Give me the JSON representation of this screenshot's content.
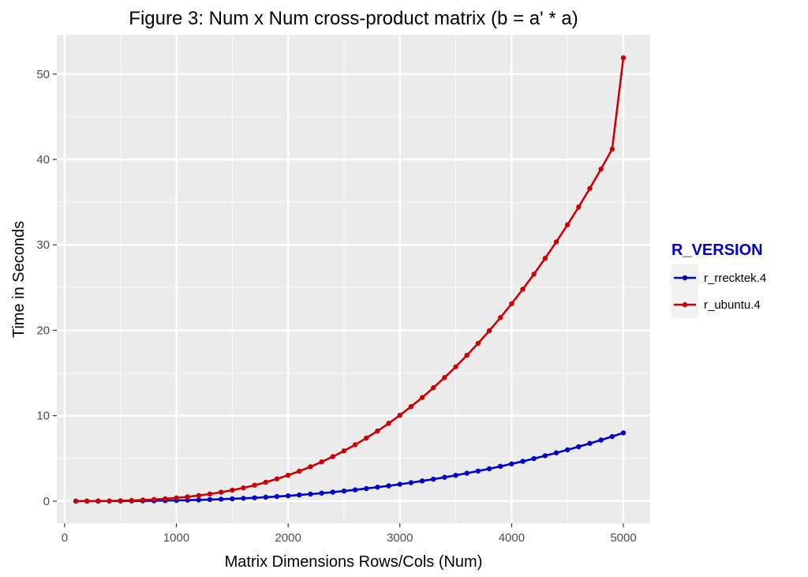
{
  "chart_data": {
    "type": "line",
    "title": "Figure 3: Num x Num cross-product matrix (b = a' * a)",
    "xlabel": "Matrix Dimensions Rows/Cols (Num)",
    "ylabel": "Time in Seconds",
    "xlim": [
      -70,
      5240
    ],
    "ylim": [
      -2.6,
      54.6
    ],
    "x_ticks": [
      0,
      1000,
      2000,
      3000,
      4000,
      5000
    ],
    "y_ticks": [
      0,
      10,
      20,
      30,
      40,
      50
    ],
    "x_tick_labels": [
      "0",
      "1000",
      "2000",
      "3000",
      "4000",
      "5000"
    ],
    "y_tick_labels": [
      "0",
      "10",
      "20",
      "30",
      "40",
      "50"
    ],
    "x_minor": [
      500,
      1500,
      2500,
      3500,
      4500
    ],
    "y_minor": [
      5,
      15,
      25,
      35,
      45
    ],
    "grid": true,
    "legend": {
      "title": "R_VERSION",
      "title_color": "#0000cc",
      "position": "right"
    },
    "x": [
      100,
      200,
      300,
      400,
      500,
      600,
      700,
      800,
      900,
      1000,
      1100,
      1200,
      1300,
      1400,
      1500,
      1600,
      1700,
      1800,
      1900,
      2000,
      2100,
      2200,
      2300,
      2400,
      2500,
      2600,
      2700,
      2800,
      2900,
      3000,
      3100,
      3200,
      3300,
      3400,
      3500,
      3600,
      3700,
      3800,
      3900,
      4000,
      4100,
      4200,
      4300,
      4400,
      4500,
      4600,
      4700,
      4800,
      4900,
      5000
    ],
    "series": [
      {
        "name": "r_rrecktek.4",
        "color": "#0000cc",
        "values": [
          0.0,
          0.0,
          0.0,
          0.01,
          0.01,
          0.02,
          0.03,
          0.04,
          0.06,
          0.08,
          0.11,
          0.14,
          0.18,
          0.22,
          0.27,
          0.33,
          0.39,
          0.46,
          0.54,
          0.62,
          0.72,
          0.82,
          0.93,
          1.05,
          1.18,
          1.32,
          1.47,
          1.63,
          1.79,
          1.97,
          2.16,
          2.36,
          2.57,
          2.79,
          3.02,
          3.27,
          3.52,
          3.79,
          4.07,
          4.36,
          4.66,
          4.98,
          5.31,
          5.65,
          6.01,
          6.37,
          6.76,
          7.15,
          7.56,
          7.99
        ]
      },
      {
        "name": "r_ubuntu.4",
        "color": "#cc0000",
        "values": [
          0.0,
          0.0,
          0.01,
          0.02,
          0.05,
          0.08,
          0.13,
          0.19,
          0.27,
          0.38,
          0.5,
          0.65,
          0.83,
          1.04,
          1.28,
          1.55,
          1.86,
          2.21,
          2.6,
          3.03,
          3.5,
          4.02,
          4.59,
          5.21,
          5.88,
          6.6,
          7.38,
          8.21,
          9.1,
          10.05,
          11.06,
          12.13,
          13.27,
          14.47,
          15.73,
          17.07,
          18.47,
          19.94,
          21.49,
          23.11,
          24.8,
          26.57,
          28.42,
          30.35,
          32.35,
          34.44,
          36.61,
          38.87,
          41.21,
          51.9
        ]
      }
    ]
  }
}
